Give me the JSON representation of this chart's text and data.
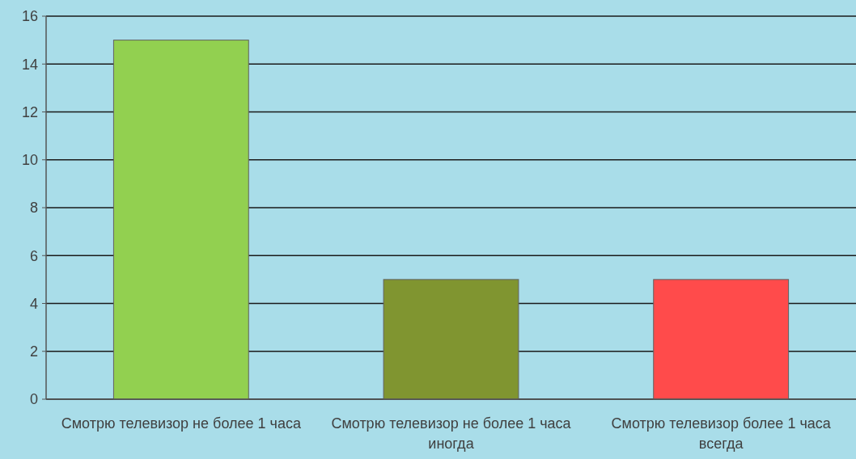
{
  "chart_data": {
    "type": "bar",
    "categories": [
      "Смотрю телевизор не более 1 часа",
      "Смотрю телевизор не более 1 часа иногда",
      "Смотрю телевизор более 1 часа всегда"
    ],
    "values": [
      15,
      5,
      5
    ],
    "colors": [
      "#92d050",
      "#809530",
      "#ff4b4b"
    ],
    "ylim": [
      0,
      16
    ],
    "yticks": [
      0,
      2,
      4,
      6,
      8,
      10,
      12,
      14,
      16
    ],
    "grid": "y"
  }
}
